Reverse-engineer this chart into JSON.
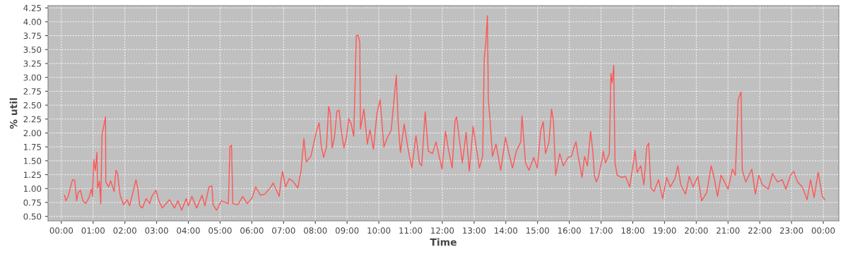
{
  "chart_data": {
    "type": "line",
    "xlabel": "Time",
    "ylabel": "% util",
    "xlim": [
      -0.42,
      24.49
    ],
    "ylim": [
      0.42,
      4.29
    ],
    "xticks": [
      {
        "value": 0,
        "label": "00:00"
      },
      {
        "value": 1,
        "label": "01:00"
      },
      {
        "value": 2,
        "label": "02:00"
      },
      {
        "value": 3,
        "label": "03:00"
      },
      {
        "value": 4,
        "label": "04:00"
      },
      {
        "value": 5,
        "label": "05:00"
      },
      {
        "value": 6,
        "label": "06:00"
      },
      {
        "value": 7,
        "label": "07:00"
      },
      {
        "value": 8,
        "label": "08:00"
      },
      {
        "value": 9,
        "label": "09:00"
      },
      {
        "value": 10,
        "label": "10:00"
      },
      {
        "value": 11,
        "label": "11:00"
      },
      {
        "value": 12,
        "label": "12:00"
      },
      {
        "value": 13,
        "label": "13:00"
      },
      {
        "value": 14,
        "label": "14:00"
      },
      {
        "value": 15,
        "label": "15:00"
      },
      {
        "value": 16,
        "label": "16:00"
      },
      {
        "value": 17,
        "label": "17:00"
      },
      {
        "value": 18,
        "label": "18:00"
      },
      {
        "value": 19,
        "label": "19:00"
      },
      {
        "value": 20,
        "label": "20:00"
      },
      {
        "value": 21,
        "label": "21:00"
      },
      {
        "value": 22,
        "label": "22:00"
      },
      {
        "value": 23,
        "label": "23:00"
      },
      {
        "value": 24,
        "label": "00:00"
      }
    ],
    "yticks": [
      {
        "value": 0.5,
        "label": "0.50"
      },
      {
        "value": 0.75,
        "label": "0.75"
      },
      {
        "value": 1.0,
        "label": "1.00"
      },
      {
        "value": 1.25,
        "label": "1.25"
      },
      {
        "value": 1.5,
        "label": "1.50"
      },
      {
        "value": 1.75,
        "label": "1.75"
      },
      {
        "value": 2.0,
        "label": "2.00"
      },
      {
        "value": 2.25,
        "label": "2.25"
      },
      {
        "value": 2.5,
        "label": "2.50"
      },
      {
        "value": 2.75,
        "label": "2.75"
      },
      {
        "value": 3.0,
        "label": "3.00"
      },
      {
        "value": 3.25,
        "label": "3.25"
      },
      {
        "value": 3.5,
        "label": "3.50"
      },
      {
        "value": 3.75,
        "label": "3.75"
      },
      {
        "value": 4.0,
        "label": "4.00"
      },
      {
        "value": 4.25,
        "label": "4.25"
      }
    ],
    "grid": true,
    "marker": "none",
    "line_style": "solid",
    "series": [
      {
        "color": "#ff5555",
        "x": [
          0.1,
          0.14,
          0.22,
          0.27,
          0.35,
          0.42,
          0.48,
          0.53,
          0.6,
          0.68,
          0.77,
          0.87,
          0.94,
          0.98,
          1.02,
          1.07,
          1.12,
          1.14,
          1.2,
          1.24,
          1.28,
          1.34,
          1.39,
          1.4,
          1.49,
          1.55,
          1.66,
          1.72,
          1.77,
          1.85,
          1.96,
          2.07,
          2.15,
          2.26,
          2.35,
          2.41,
          2.47,
          2.55,
          2.67,
          2.78,
          2.85,
          2.98,
          3.07,
          3.18,
          3.3,
          3.41,
          3.56,
          3.67,
          3.79,
          3.93,
          4.0,
          4.11,
          4.26,
          4.43,
          4.52,
          4.65,
          4.74,
          4.78,
          4.89,
          5.04,
          5.26,
          5.31,
          5.36,
          5.4,
          5.56,
          5.71,
          5.86,
          6.01,
          6.12,
          6.27,
          6.41,
          6.6,
          6.67,
          6.79,
          6.86,
          6.92,
          6.97,
          7.06,
          7.18,
          7.31,
          7.45,
          7.55,
          7.64,
          7.71,
          7.86,
          8.05,
          8.12,
          8.19,
          8.26,
          8.35,
          8.42,
          8.47,
          8.53,
          8.6,
          8.68,
          8.75,
          8.81,
          8.9,
          8.98,
          9.05,
          9.13,
          9.21,
          9.29,
          9.35,
          9.4,
          9.42,
          9.53,
          9.64,
          9.72,
          9.83,
          9.94,
          10.04,
          10.16,
          10.27,
          10.39,
          10.46,
          10.55,
          10.61,
          10.68,
          10.8,
          10.91,
          11.04,
          11.17,
          11.28,
          11.35,
          11.46,
          11.56,
          11.69,
          11.8,
          11.99,
          12.1,
          12.19,
          12.31,
          12.4,
          12.45,
          12.53,
          12.63,
          12.75,
          12.85,
          12.97,
          13.04,
          13.17,
          13.27,
          13.32,
          13.37,
          13.42,
          13.45,
          13.51,
          13.58,
          13.69,
          13.84,
          13.99,
          14.1,
          14.21,
          14.33,
          14.47,
          14.51,
          14.62,
          14.73,
          14.88,
          14.99,
          15.1,
          15.18,
          15.25,
          15.36,
          15.44,
          15.5,
          15.57,
          15.7,
          15.81,
          15.96,
          16.07,
          16.14,
          16.21,
          16.27,
          16.35,
          16.4,
          16.48,
          16.57,
          16.67,
          16.74,
          16.79,
          16.85,
          16.92,
          17.01,
          17.07,
          17.14,
          17.26,
          17.31,
          17.35,
          17.4,
          17.44,
          17.51,
          17.66,
          17.77,
          17.9,
          18.03,
          18.07,
          18.14,
          18.25,
          18.35,
          18.44,
          18.5,
          18.57,
          18.67,
          18.81,
          18.94,
          19.07,
          19.18,
          19.33,
          19.42,
          19.51,
          19.66,
          19.78,
          19.9,
          20.05,
          20.17,
          20.33,
          20.47,
          20.56,
          20.67,
          20.78,
          20.89,
          21.0,
          21.14,
          21.23,
          21.32,
          21.41,
          21.45,
          21.56,
          21.75,
          21.86,
          21.97,
          22.08,
          22.27,
          22.4,
          22.56,
          22.71,
          22.82,
          22.97,
          23.07,
          23.19,
          23.34,
          23.49,
          23.6,
          23.71,
          23.84,
          23.97,
          24.05
        ],
        "values": [
          0.88,
          0.78,
          0.87,
          0.99,
          1.16,
          1.15,
          0.78,
          0.93,
          0.97,
          0.78,
          0.73,
          0.84,
          0.99,
          0.86,
          1.52,
          1.33,
          1.65,
          1.01,
          1.13,
          0.73,
          1.97,
          2.14,
          2.29,
          1.12,
          1.03,
          1.14,
          0.95,
          1.33,
          1.27,
          0.88,
          0.71,
          0.8,
          0.69,
          0.95,
          1.16,
          0.99,
          0.69,
          0.65,
          0.82,
          0.73,
          0.86,
          0.97,
          0.78,
          0.65,
          0.73,
          0.8,
          0.65,
          0.78,
          0.61,
          0.82,
          0.69,
          0.86,
          0.65,
          0.88,
          0.69,
          1.03,
          1.05,
          0.71,
          0.61,
          0.78,
          0.73,
          1.75,
          1.78,
          0.73,
          0.71,
          0.86,
          0.73,
          0.84,
          1.03,
          0.88,
          0.9,
          1.03,
          1.1,
          0.95,
          0.86,
          1.16,
          1.31,
          1.03,
          1.18,
          1.12,
          1.01,
          1.33,
          1.9,
          1.48,
          1.58,
          2.07,
          2.18,
          1.75,
          1.56,
          1.75,
          2.48,
          2.35,
          1.73,
          1.92,
          2.39,
          2.41,
          2.07,
          1.73,
          1.92,
          2.26,
          2.16,
          1.94,
          3.75,
          3.76,
          3.63,
          2.07,
          2.43,
          1.8,
          2.06,
          1.71,
          2.35,
          2.6,
          1.75,
          1.92,
          2.05,
          2.48,
          3.04,
          2.18,
          1.65,
          2.16,
          1.75,
          1.37,
          1.95,
          1.46,
          1.41,
          2.38,
          1.67,
          1.63,
          1.84,
          1.35,
          2.03,
          1.71,
          1.37,
          2.22,
          2.29,
          1.92,
          1.46,
          2.01,
          1.31,
          2.12,
          1.85,
          1.37,
          1.58,
          3.33,
          3.63,
          4.11,
          2.6,
          2.18,
          1.58,
          1.8,
          1.33,
          1.92,
          1.63,
          1.37,
          1.67,
          1.84,
          2.31,
          1.46,
          1.33,
          1.56,
          1.37,
          2.05,
          2.2,
          1.63,
          1.84,
          2.43,
          2.22,
          1.24,
          1.63,
          1.41,
          1.56,
          1.58,
          1.73,
          1.84,
          1.61,
          1.37,
          1.2,
          1.58,
          1.41,
          2.03,
          1.67,
          1.24,
          1.12,
          1.22,
          1.46,
          1.67,
          1.46,
          1.63,
          3.07,
          2.9,
          3.22,
          1.46,
          1.24,
          1.2,
          1.22,
          1.03,
          1.5,
          1.69,
          1.29,
          1.41,
          1.07,
          1.75,
          1.82,
          1.01,
          0.95,
          1.16,
          0.82,
          1.2,
          1.03,
          1.18,
          1.41,
          1.07,
          0.9,
          1.22,
          1.03,
          1.22,
          0.78,
          0.93,
          1.41,
          1.2,
          0.86,
          1.24,
          1.12,
          0.99,
          1.35,
          1.24,
          2.6,
          2.74,
          1.33,
          1.12,
          1.35,
          0.9,
          1.24,
          1.07,
          0.99,
          1.27,
          1.12,
          1.16,
          0.99,
          1.24,
          1.31,
          1.12,
          1.03,
          0.8,
          1.16,
          0.84,
          1.29,
          0.86,
          0.8
        ]
      }
    ]
  }
}
